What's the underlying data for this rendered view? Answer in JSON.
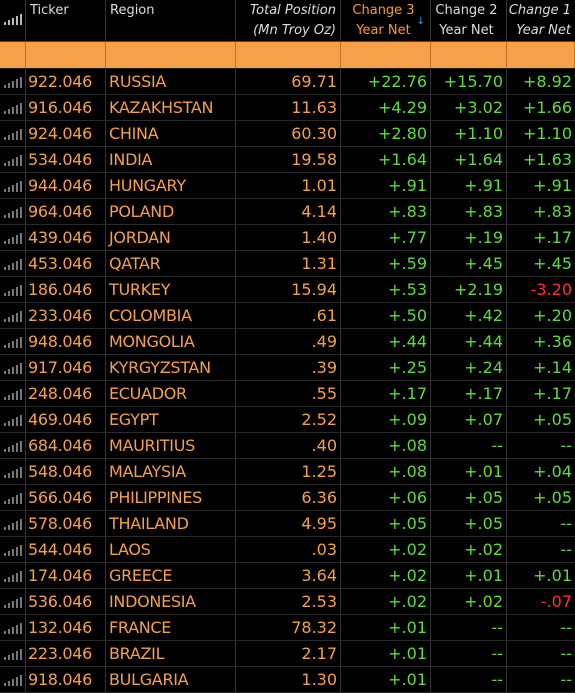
{
  "header": {
    "ticker": "Ticker",
    "region": "Region",
    "total_line1": "Total Position",
    "total_line2": "(Mn Troy Oz)",
    "c3_line1": "Change 3",
    "c3_line2": "Year Net",
    "c2_line1": "Change 2",
    "c2_line2": "Year Net",
    "c1_line1": "Change 1",
    "c1_line2": "Year Net",
    "sort_icon": "sort-descending-arrow"
  },
  "colors": {
    "accent_orange": "#f5a04a",
    "positive": "#5fdc3c",
    "negative": "#ff3030",
    "background": "#000000"
  },
  "rows": [
    {
      "ticker": "922.046",
      "region": "RUSSIA",
      "total": "69.71",
      "c3": "+22.76",
      "c2": "+15.70",
      "c1": "+8.92"
    },
    {
      "ticker": "916.046",
      "region": "KAZAKHSTAN",
      "total": "11.63",
      "c3": "+4.29",
      "c2": "+3.02",
      "c1": "+1.66"
    },
    {
      "ticker": "924.046",
      "region": "CHINA",
      "total": "60.30",
      "c3": "+2.80",
      "c2": "+1.10",
      "c1": "+1.10"
    },
    {
      "ticker": "534.046",
      "region": "INDIA",
      "total": "19.58",
      "c3": "+1.64",
      "c2": "+1.64",
      "c1": "+1.63"
    },
    {
      "ticker": "944.046",
      "region": "HUNGARY",
      "total": "1.01",
      "c3": "+.91",
      "c2": "+.91",
      "c1": "+.91"
    },
    {
      "ticker": "964.046",
      "region": "POLAND",
      "total": "4.14",
      "c3": "+.83",
      "c2": "+.83",
      "c1": "+.83"
    },
    {
      "ticker": "439.046",
      "region": "JORDAN",
      "total": "1.40",
      "c3": "+.77",
      "c2": "+.19",
      "c1": "+.17"
    },
    {
      "ticker": "453.046",
      "region": "QATAR",
      "total": "1.31",
      "c3": "+.59",
      "c2": "+.45",
      "c1": "+.45"
    },
    {
      "ticker": "186.046",
      "region": "TURKEY",
      "total": "15.94",
      "c3": "+.53",
      "c2": "+2.19",
      "c1": "-3.20"
    },
    {
      "ticker": "233.046",
      "region": "COLOMBIA",
      "total": ".61",
      "c3": "+.50",
      "c2": "+.42",
      "c1": "+.20"
    },
    {
      "ticker": "948.046",
      "region": "MONGOLIA",
      "total": ".49",
      "c3": "+.44",
      "c2": "+.44",
      "c1": "+.36"
    },
    {
      "ticker": "917.046",
      "region": "KYRGYZSTAN",
      "total": ".39",
      "c3": "+.25",
      "c2": "+.24",
      "c1": "+.14"
    },
    {
      "ticker": "248.046",
      "region": "ECUADOR",
      "total": ".55",
      "c3": "+.17",
      "c2": "+.17",
      "c1": "+.17"
    },
    {
      "ticker": "469.046",
      "region": "EGYPT",
      "total": "2.52",
      "c3": "+.09",
      "c2": "+.07",
      "c1": "+.05"
    },
    {
      "ticker": "684.046",
      "region": "MAURITIUS",
      "total": ".40",
      "c3": "+.08",
      "c2": "--",
      "c1": "--"
    },
    {
      "ticker": "548.046",
      "region": "MALAYSIA",
      "total": "1.25",
      "c3": "+.08",
      "c2": "+.01",
      "c1": "+.04"
    },
    {
      "ticker": "566.046",
      "region": "PHILIPPINES",
      "total": "6.36",
      "c3": "+.06",
      "c2": "+.05",
      "c1": "+.05"
    },
    {
      "ticker": "578.046",
      "region": "THAILAND",
      "total": "4.95",
      "c3": "+.05",
      "c2": "+.05",
      "c1": "--"
    },
    {
      "ticker": "544.046",
      "region": "LAOS",
      "total": ".03",
      "c3": "+.02",
      "c2": "+.02",
      "c1": "--"
    },
    {
      "ticker": "174.046",
      "region": "GREECE",
      "total": "3.64",
      "c3": "+.02",
      "c2": "+.01",
      "c1": "+.01"
    },
    {
      "ticker": "536.046",
      "region": "INDONESIA",
      "total": "2.53",
      "c3": "+.02",
      "c2": "+.02",
      "c1": "-.07"
    },
    {
      "ticker": "132.046",
      "region": "FRANCE",
      "total": "78.32",
      "c3": "+.01",
      "c2": "--",
      "c1": "--"
    },
    {
      "ticker": "223.046",
      "region": "BRAZIL",
      "total": "2.17",
      "c3": "+.01",
      "c2": "--",
      "c1": "--"
    },
    {
      "ticker": "918.046",
      "region": "BULGARIA",
      "total": "1.30",
      "c3": "+.01",
      "c2": "--",
      "c1": "--"
    }
  ]
}
